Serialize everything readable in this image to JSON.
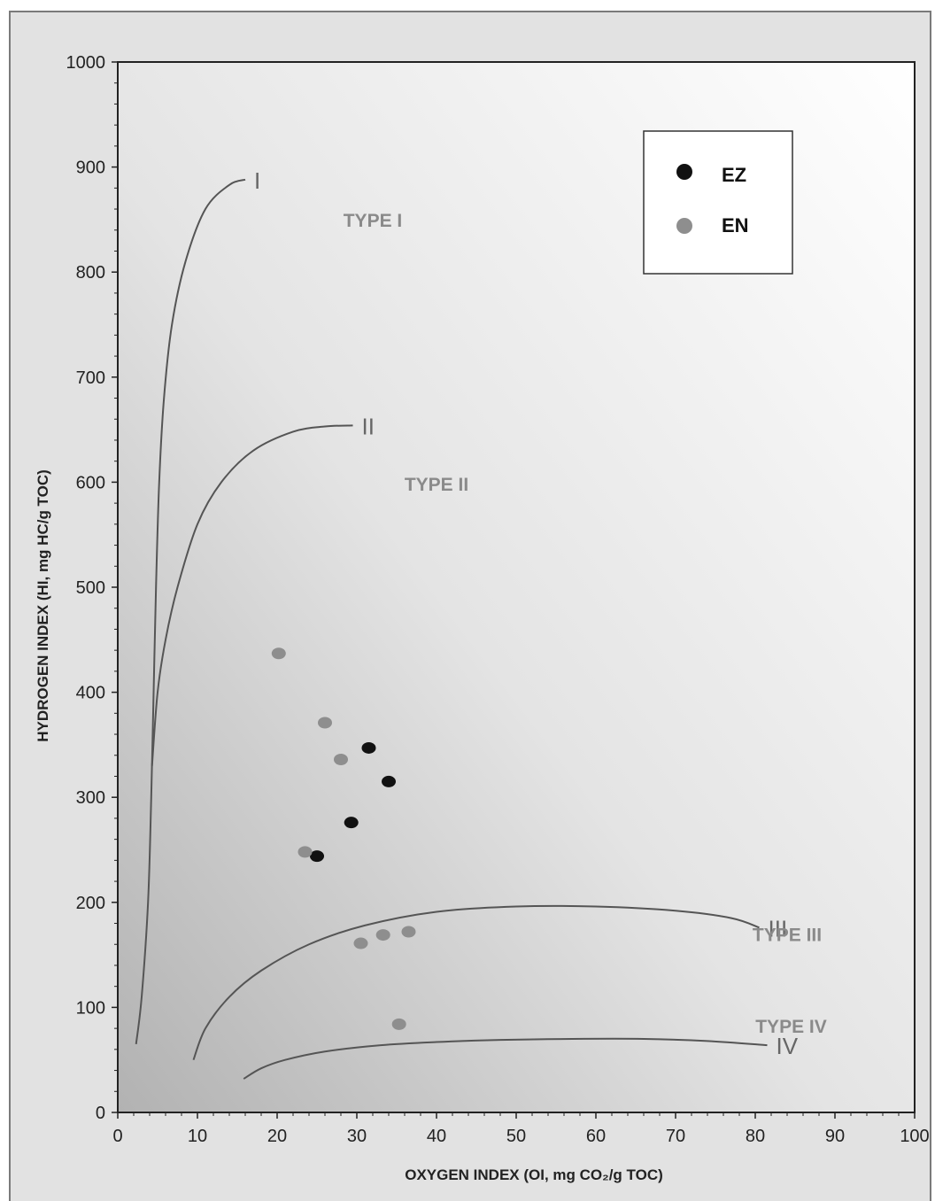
{
  "chart_data": {
    "type": "scatter",
    "xlabel": "OXYGEN INDEX (OI, mg CO₂/g TOC)",
    "ylabel": "HYDROGEN INDEX (HI, mg HC/g TOC)",
    "xlim": [
      0,
      100
    ],
    "ylim": [
      0,
      1000
    ],
    "xticks": [
      "0",
      "10",
      "20",
      "30",
      "40",
      "50",
      "60",
      "70",
      "80",
      "90",
      "100"
    ],
    "yticks": [
      "0",
      "100",
      "200",
      "300",
      "400",
      "500",
      "600",
      "700",
      "800",
      "900",
      "1000"
    ],
    "grid": false,
    "legend_position": "top-right",
    "series": [
      {
        "name": "EZ",
        "color": "#111111",
        "points": [
          [
            31.5,
            347
          ],
          [
            34.0,
            315
          ],
          [
            29.3,
            276
          ],
          [
            25.0,
            244
          ]
        ]
      },
      {
        "name": "EN",
        "color": "#8e8e8e",
        "points": [
          [
            20.2,
            437
          ],
          [
            26.0,
            371
          ],
          [
            28.0,
            336
          ],
          [
            23.5,
            248
          ],
          [
            30.5,
            161
          ],
          [
            33.3,
            169
          ],
          [
            36.5,
            172
          ],
          [
            35.3,
            84
          ]
        ]
      }
    ],
    "curves": [
      {
        "label": "I",
        "points": [
          [
            2.3,
            65
          ],
          [
            3.0,
            110
          ],
          [
            3.8,
            200
          ],
          [
            4.2,
            300
          ],
          [
            4.5,
            400
          ],
          [
            4.8,
            500
          ],
          [
            5.2,
            600
          ],
          [
            5.8,
            680
          ],
          [
            6.8,
            750
          ],
          [
            8.5,
            810
          ],
          [
            11,
            860
          ],
          [
            14,
            883
          ],
          [
            16,
            888
          ]
        ]
      },
      {
        "label": "II",
        "points": [
          [
            4.3,
            330
          ],
          [
            5.0,
            400
          ],
          [
            6.0,
            450
          ],
          [
            7.5,
            500
          ],
          [
            10,
            560
          ],
          [
            13,
            600
          ],
          [
            17,
            630
          ],
          [
            22,
            648
          ],
          [
            26,
            653
          ],
          [
            29.5,
            654
          ]
        ]
      },
      {
        "label": "III",
        "points": [
          [
            9.5,
            50
          ],
          [
            11,
            80
          ],
          [
            14,
            110
          ],
          [
            18,
            135
          ],
          [
            24,
            160
          ],
          [
            31,
            178
          ],
          [
            40,
            191
          ],
          [
            50,
            196
          ],
          [
            60,
            196
          ],
          [
            70,
            192
          ],
          [
            77,
            185
          ],
          [
            80.5,
            176
          ]
        ]
      },
      {
        "label": "IV",
        "points": [
          [
            15.8,
            32
          ],
          [
            18,
            42
          ],
          [
            21,
            50
          ],
          [
            26,
            58
          ],
          [
            33,
            64
          ],
          [
            40,
            67
          ],
          [
            48,
            69
          ],
          [
            57,
            70
          ],
          [
            66,
            70
          ],
          [
            74,
            68
          ],
          [
            81.5,
            64
          ]
        ]
      }
    ],
    "annotations": [
      {
        "text": "TYPE I",
        "x": 32,
        "y": 843
      },
      {
        "text": "TYPE II",
        "x": 40,
        "y": 592
      },
      {
        "text": "TYPE III",
        "x": 84,
        "y": 163
      },
      {
        "text": "TYPE IV",
        "x": 84.5,
        "y": 76
      }
    ]
  }
}
